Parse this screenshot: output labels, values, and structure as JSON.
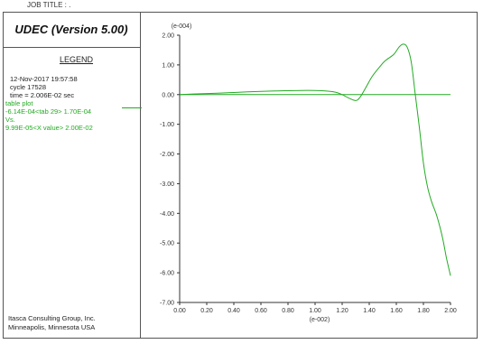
{
  "header": {
    "job_title": "JOB TITLE : ."
  },
  "panel": {
    "title": "UDEC (Version 5.00)",
    "legend_title": "LEGEND",
    "lines_black": [
      "12-Nov-2017  19:57:58",
      "cycle   17528",
      "time  =  2.006E-02 sec"
    ],
    "lines_green": [
      "table plot",
      "-6.14E-04<tab  29> 1.70E-04",
      "Vs.",
      "9.99E-05<X value> 2.00E-02"
    ],
    "footer": [
      "Itasca Consulting Group, Inc.",
      "Minneapolis, Minnesota  USA"
    ]
  },
  "colors": {
    "series": "#22aa22",
    "axis": "#333333"
  },
  "chart_data": {
    "type": "line",
    "y_exponent_label": "(e-004)",
    "x_exponent_label": "(e-002)",
    "xlim": [
      0,
      2.0
    ],
    "ylim": [
      -7.0,
      2.0
    ],
    "x_ticks": [
      "0.00",
      "0.20",
      "0.40",
      "0.60",
      "0.80",
      "1.00",
      "1.20",
      "1.40",
      "1.60",
      "1.80",
      "2.00"
    ],
    "y_ticks": [
      "2.00",
      "1.00",
      "0.00",
      "-1.00",
      "-2.00",
      "-3.00",
      "-4.00",
      "-5.00",
      "-6.00",
      "-7.00"
    ],
    "series": [
      {
        "x": [
          0.0,
          0.1,
          0.3,
          0.5,
          0.7,
          0.9,
          1.05,
          1.15,
          1.2,
          1.25,
          1.3,
          1.33,
          1.37,
          1.42,
          1.48,
          1.52,
          1.58,
          1.62,
          1.65,
          1.68,
          1.71,
          1.74,
          1.77,
          1.8,
          1.83,
          1.86,
          1.9,
          1.94,
          1.97,
          2.0
        ],
        "y": [
          0.0,
          0.02,
          0.05,
          0.09,
          0.12,
          0.14,
          0.13,
          0.08,
          0.0,
          -0.12,
          -0.2,
          -0.1,
          0.2,
          0.6,
          0.95,
          1.15,
          1.35,
          1.6,
          1.7,
          1.6,
          1.1,
          0.0,
          -1.1,
          -2.3,
          -3.1,
          -3.6,
          -4.1,
          -4.8,
          -5.5,
          -6.1
        ]
      }
    ],
    "reference_line_y": 0.0
  }
}
